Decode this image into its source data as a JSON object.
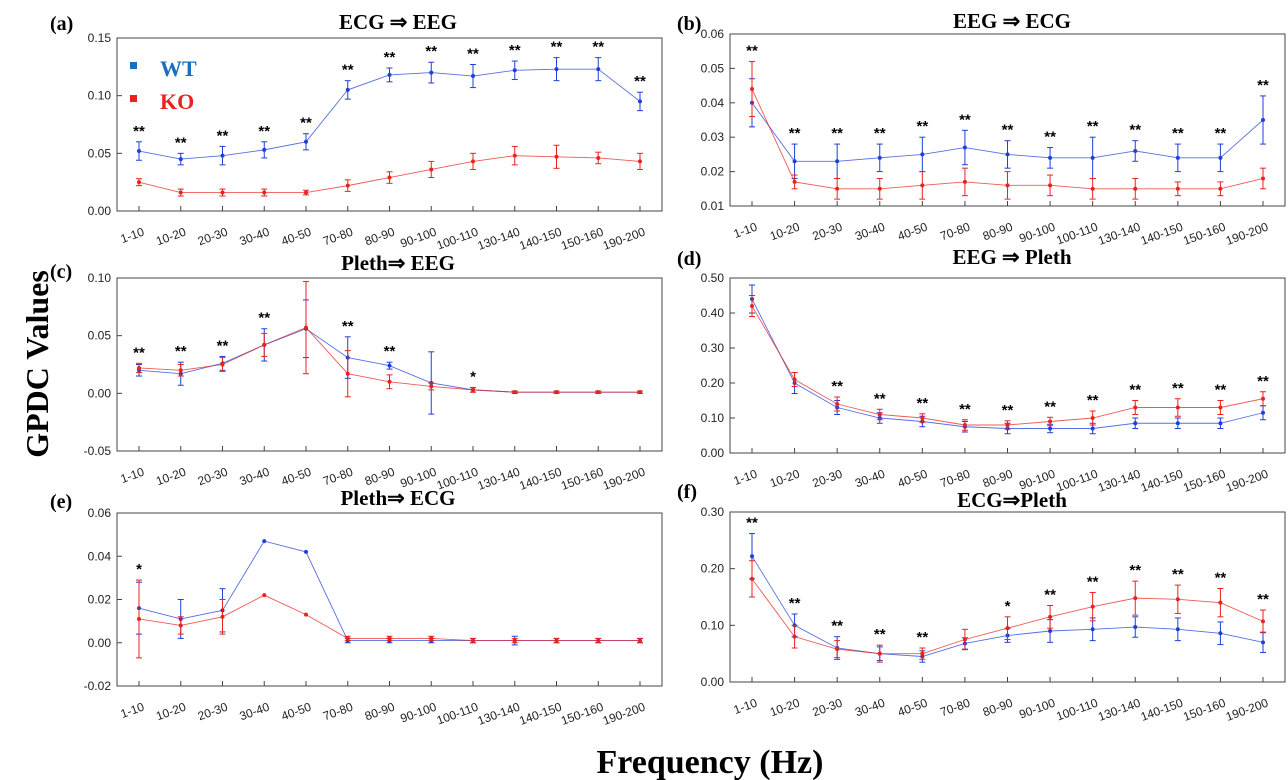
{
  "figure": {
    "ylabel": "GPDC Values",
    "xlabel": "Frequency (Hz)",
    "colors": {
      "WT": "#1f3fd8",
      "KO": "#e8231e",
      "legend_WT": "#1a6fc0"
    },
    "legend": [
      {
        "label": "WT",
        "color": "#1a6fc0"
      },
      {
        "label": "KO",
        "color": "#e8231e"
      }
    ]
  },
  "chart_data": [
    {
      "panel": "(a)",
      "title": "ECG ⇒ EEG",
      "type": "line",
      "categories": [
        "1-10",
        "10-20",
        "20-30",
        "30-40",
        "40-50",
        "70-80",
        "80-90",
        "90-100",
        "100-110",
        "130-140",
        "140-150",
        "150-160",
        "190-200"
      ],
      "ylim": [
        0,
        0.15
      ],
      "yticks": [
        "0.00",
        "0.05",
        "0.10",
        "0.15"
      ],
      "series": [
        {
          "name": "WT",
          "values": [
            0.052,
            0.045,
            0.048,
            0.053,
            0.06,
            0.105,
            0.118,
            0.12,
            0.117,
            0.122,
            0.123,
            0.123,
            0.095
          ],
          "errors": [
            0.008,
            0.005,
            0.008,
            0.007,
            0.007,
            0.008,
            0.006,
            0.009,
            0.01,
            0.008,
            0.01,
            0.01,
            0.008
          ]
        },
        {
          "name": "KO",
          "values": [
            0.025,
            0.016,
            0.016,
            0.016,
            0.016,
            0.022,
            0.029,
            0.036,
            0.043,
            0.048,
            0.047,
            0.046,
            0.043
          ],
          "errors": [
            0.003,
            0.003,
            0.003,
            0.003,
            0.002,
            0.005,
            0.005,
            0.007,
            0.007,
            0.008,
            0.01,
            0.005,
            0.007
          ]
        }
      ],
      "significance": [
        "**",
        "**",
        "**",
        "**",
        "**",
        "**",
        "**",
        "**",
        "**",
        "**",
        "**",
        "**",
        "**"
      ]
    },
    {
      "panel": "(b)",
      "title": "EEG ⇒ ECG",
      "type": "line",
      "categories": [
        "1-10",
        "10-20",
        "20-30",
        "30-40",
        "40-50",
        "70-80",
        "80-90",
        "90-100",
        "100-110",
        "130-140",
        "140-150",
        "150-160",
        "190-200"
      ],
      "ylim": [
        0.01,
        0.06
      ],
      "yticks": [
        "0.01",
        "0.02",
        "0.03",
        "0.04",
        "0.05",
        "0.06"
      ],
      "series": [
        {
          "name": "WT",
          "values": [
            0.04,
            0.023,
            0.023,
            0.024,
            0.025,
            0.027,
            0.025,
            0.024,
            0.024,
            0.026,
            0.024,
            0.024,
            0.035
          ],
          "errors": [
            0.007,
            0.005,
            0.005,
            0.004,
            0.005,
            0.005,
            0.004,
            0.003,
            0.006,
            0.003,
            0.004,
            0.004,
            0.007
          ]
        },
        {
          "name": "KO",
          "values": [
            0.044,
            0.017,
            0.015,
            0.015,
            0.016,
            0.017,
            0.016,
            0.016,
            0.015,
            0.015,
            0.015,
            0.015,
            0.018
          ],
          "errors": [
            0.008,
            0.002,
            0.003,
            0.003,
            0.004,
            0.004,
            0.004,
            0.003,
            0.003,
            0.003,
            0.002,
            0.002,
            0.003
          ]
        }
      ],
      "significance": [
        "**",
        "**",
        "**",
        "**",
        "**",
        "**",
        "**",
        "**",
        "**",
        "**",
        "**",
        "**",
        "**"
      ]
    },
    {
      "panel": "(c)",
      "title": "Pleth⇒ EEG",
      "type": "line",
      "categories": [
        "1-10",
        "10-20",
        "20-30",
        "30-40",
        "40-50",
        "70-80",
        "80-90",
        "90-100",
        "100-110",
        "130-140",
        "140-150",
        "150-160",
        "190-200"
      ],
      "ylim": [
        -0.05,
        0.1
      ],
      "yticks": [
        "-0.05",
        "0.00",
        "0.05",
        "0.10"
      ],
      "series": [
        {
          "name": "WT",
          "values": [
            0.02,
            0.017,
            0.026,
            0.042,
            0.056,
            0.031,
            0.024,
            0.009,
            0.003,
            0.001,
            0.001,
            0.001,
            0.001
          ],
          "errors": [
            0.005,
            0.01,
            0.006,
            0.014,
            0.025,
            0.018,
            0.003,
            0.027,
            0.002,
            0.001,
            0.001,
            0.001,
            0.001
          ]
        },
        {
          "name": "KO",
          "values": [
            0.022,
            0.02,
            0.025,
            0.042,
            0.057,
            0.017,
            0.01,
            0.006,
            0.003,
            0.001,
            0.001,
            0.001,
            0.001
          ],
          "errors": [
            0.004,
            0.005,
            0.006,
            0.01,
            0.04,
            0.02,
            0.006,
            0.003,
            0.002,
            0.001,
            0.001,
            0.001,
            0.001
          ]
        }
      ],
      "significance": [
        "**",
        "**",
        "**",
        "**",
        "",
        "**",
        "**",
        "",
        "*",
        "",
        "",
        "",
        ""
      ]
    },
    {
      "panel": "(d)",
      "title": "EEG ⇒ Pleth",
      "type": "line",
      "categories": [
        "1-10",
        "10-20",
        "20-30",
        "30-40",
        "40-50",
        "70-80",
        "80-90",
        "90-100",
        "100-110",
        "130-140",
        "140-150",
        "150-160",
        "190-200"
      ],
      "ylim": [
        0,
        0.5
      ],
      "yticks": [
        "0.00",
        "0.10",
        "0.20",
        "0.30",
        "0.40",
        "0.50"
      ],
      "series": [
        {
          "name": "WT",
          "values": [
            0.44,
            0.2,
            0.13,
            0.1,
            0.09,
            0.075,
            0.07,
            0.07,
            0.07,
            0.085,
            0.085,
            0.085,
            0.115
          ],
          "errors": [
            0.04,
            0.03,
            0.02,
            0.015,
            0.015,
            0.015,
            0.015,
            0.012,
            0.015,
            0.015,
            0.015,
            0.015,
            0.02
          ]
        },
        {
          "name": "KO",
          "values": [
            0.42,
            0.21,
            0.14,
            0.11,
            0.1,
            0.08,
            0.08,
            0.09,
            0.1,
            0.13,
            0.13,
            0.13,
            0.155
          ],
          "errors": [
            0.03,
            0.02,
            0.02,
            0.015,
            0.012,
            0.015,
            0.012,
            0.012,
            0.02,
            0.02,
            0.025,
            0.02,
            0.02
          ]
        }
      ],
      "significance": [
        "",
        "",
        "**",
        "**",
        "**",
        "**",
        "**",
        "**",
        "**",
        "**",
        "**",
        "**",
        "**"
      ]
    },
    {
      "panel": "(e)",
      "title": "Pleth⇒ ECG",
      "type": "line",
      "categories": [
        "1-10",
        "10-20",
        "20-30",
        "30-40",
        "40-50",
        "70-80",
        "80-90",
        "90-100",
        "100-110",
        "130-140",
        "140-150",
        "150-160",
        "190-200"
      ],
      "ylim": [
        -0.02,
        0.06
      ],
      "yticks": [
        "-0.02",
        "0.00",
        "0.02",
        "0.04",
        "0.06"
      ],
      "series": [
        {
          "name": "WT",
          "values": [
            0.016,
            0.011,
            0.015,
            0.047,
            0.042,
            0.001,
            0.001,
            0.001,
            0.001,
            0.001,
            0.001,
            0.001,
            0.001
          ],
          "errors": [
            0.012,
            0.009,
            0.01,
            0.0,
            0.0,
            0.001,
            0.001,
            0.001,
            0.001,
            0.002,
            0.001,
            0.001,
            0.001
          ]
        },
        {
          "name": "KO",
          "values": [
            0.011,
            0.008,
            0.012,
            0.022,
            0.013,
            0.002,
            0.002,
            0.002,
            0.001,
            0.001,
            0.001,
            0.001,
            0.001
          ],
          "errors": [
            0.018,
            0.004,
            0.008,
            0.0,
            0.0,
            0.001,
            0.001,
            0.001,
            0.001,
            0.001,
            0.001,
            0.001,
            0.001
          ]
        }
      ],
      "significance": [
        "*",
        "",
        "",
        "",
        "",
        "",
        "",
        "",
        "",
        "",
        "",
        "",
        ""
      ]
    },
    {
      "panel": "(f)",
      "title": "ECG⇒Pleth",
      "type": "line",
      "categories": [
        "1-10",
        "10-20",
        "20-30",
        "30-40",
        "40-50",
        "70-80",
        "80-90",
        "90-100",
        "100-110",
        "130-140",
        "140-150",
        "150-160",
        "190-200"
      ],
      "ylim": [
        0,
        0.3
      ],
      "yticks": [
        "0.00",
        "0.10",
        "0.20",
        "0.30"
      ],
      "series": [
        {
          "name": "WT",
          "values": [
            0.222,
            0.1,
            0.06,
            0.05,
            0.045,
            0.068,
            0.082,
            0.09,
            0.093,
            0.097,
            0.093,
            0.086,
            0.07
          ],
          "errors": [
            0.04,
            0.02,
            0.02,
            0.012,
            0.01,
            0.01,
            0.012,
            0.02,
            0.02,
            0.018,
            0.02,
            0.02,
            0.018
          ]
        },
        {
          "name": "KO",
          "values": [
            0.182,
            0.08,
            0.058,
            0.05,
            0.05,
            0.075,
            0.095,
            0.115,
            0.133,
            0.148,
            0.146,
            0.14,
            0.107
          ],
          "errors": [
            0.032,
            0.02,
            0.015,
            0.015,
            0.01,
            0.018,
            0.02,
            0.02,
            0.025,
            0.03,
            0.025,
            0.025,
            0.02
          ]
        }
      ],
      "significance": [
        "**",
        "**",
        "**",
        "**",
        "**",
        "",
        "*",
        "**",
        "**",
        "**",
        "**",
        "**",
        "**"
      ]
    }
  ]
}
